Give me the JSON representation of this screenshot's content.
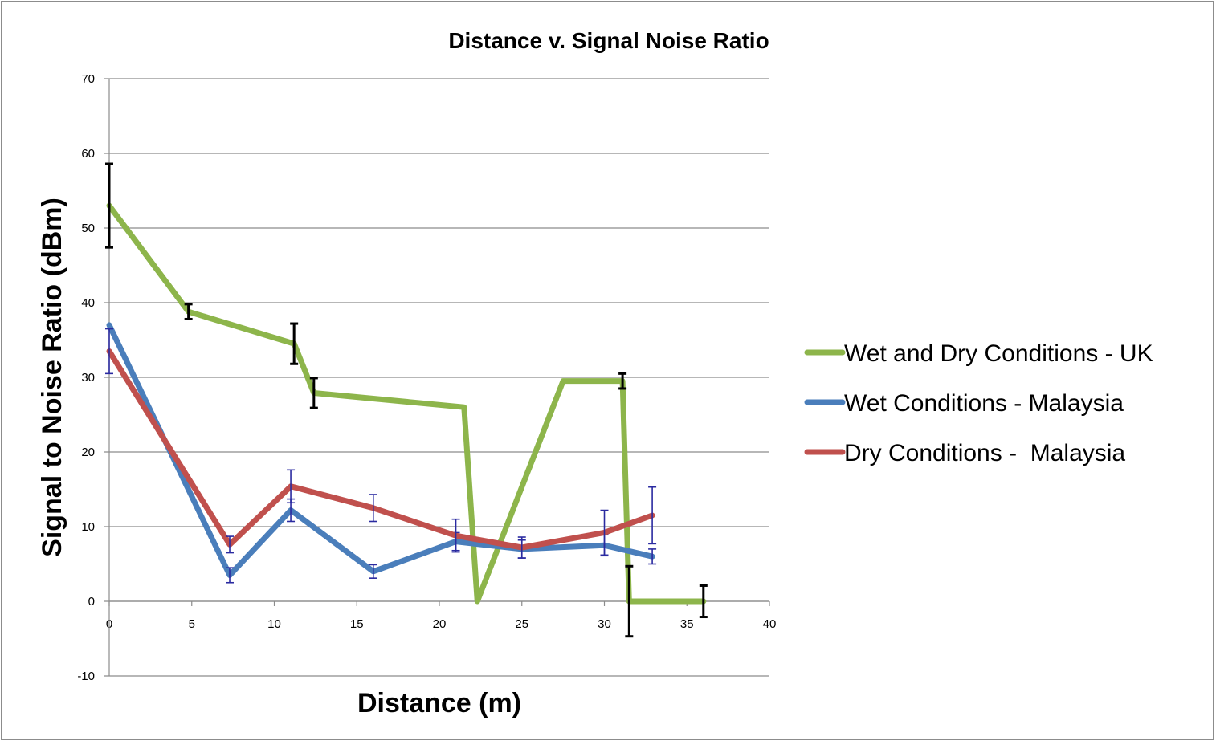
{
  "chart_data": {
    "type": "line",
    "title": "Distance v. Signal Noise Ratio",
    "xlabel": "Distance (m)",
    "ylabel": "Signal to Noise Ratio (dBm)",
    "xlim": [
      0,
      40
    ],
    "ylim": [
      -10,
      70
    ],
    "x_ticks": [
      0,
      5,
      10,
      15,
      20,
      25,
      30,
      35,
      40
    ],
    "y_ticks": [
      -10,
      0,
      10,
      20,
      30,
      40,
      50,
      60,
      70
    ],
    "grid": "horizontal",
    "legend_position": "right",
    "series": [
      {
        "name": "Wet and Dry Conditions - UK",
        "color": "#8db54b",
        "error_bar_color": "#000000",
        "points": [
          {
            "x": 0,
            "y": 53,
            "err": 5.6
          },
          {
            "x": 4.8,
            "y": 38.8,
            "err": 1.0
          },
          {
            "x": 11.2,
            "y": 34.5,
            "err": 2.7
          },
          {
            "x": 12.4,
            "y": 27.9,
            "err": 2.0
          },
          {
            "x": 21.5,
            "y": 26.0,
            "err": 0
          },
          {
            "x": 22.3,
            "y": 0,
            "err": 0
          },
          {
            "x": 27.5,
            "y": 29.5,
            "err": 0
          },
          {
            "x": 31.1,
            "y": 29.5,
            "err": 1.0
          },
          {
            "x": 31.5,
            "y": 0,
            "err": 4.7
          },
          {
            "x": 36.0,
            "y": 0,
            "err": 2.1
          }
        ]
      },
      {
        "name": "Wet Conditions - Malaysia",
        "color": "#4a7ebb",
        "error_bar_color": "#2a2aa0",
        "points": [
          {
            "x": 0,
            "y": 37,
            "err": 0
          },
          {
            "x": 7.3,
            "y": 3.5,
            "err": 1.0
          },
          {
            "x": 11.0,
            "y": 12.2,
            "err": 1.5
          },
          {
            "x": 16.0,
            "y": 4.0,
            "err": 0.9
          },
          {
            "x": 21.0,
            "y": 8.0,
            "err": 1.2
          },
          {
            "x": 25.0,
            "y": 7.0,
            "err": 1.2
          },
          {
            "x": 30.0,
            "y": 7.5,
            "err": 1.4
          },
          {
            "x": 32.9,
            "y": 6.0,
            "err": 1.0
          }
        ]
      },
      {
        "name": "Dry Conditions -  Malaysia",
        "color": "#c0504d",
        "error_bar_color": "#2a2aa0",
        "points": [
          {
            "x": 0,
            "y": 33.5,
            "err": 3.0
          },
          {
            "x": 7.3,
            "y": 7.6,
            "err": 1.1
          },
          {
            "x": 11.0,
            "y": 15.4,
            "err": 2.2
          },
          {
            "x": 16.0,
            "y": 12.5,
            "err": 1.8
          },
          {
            "x": 21.0,
            "y": 8.8,
            "err": 2.2
          },
          {
            "x": 25.0,
            "y": 7.2,
            "err": 1.4
          },
          {
            "x": 30.0,
            "y": 9.2,
            "err": 3.0
          },
          {
            "x": 32.9,
            "y": 11.5,
            "err": 3.8
          }
        ]
      }
    ]
  }
}
